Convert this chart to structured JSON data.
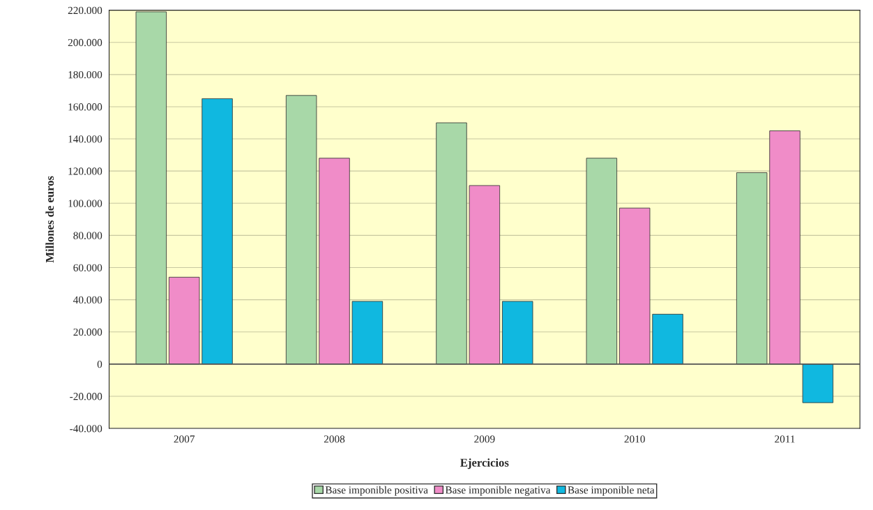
{
  "chart_data": {
    "type": "bar",
    "xlabel": "Ejercicios",
    "ylabel": "Millones de euros",
    "categories": [
      "2007",
      "2008",
      "2009",
      "2010",
      "2011"
    ],
    "series": [
      {
        "name": "Base imponible positiva",
        "color": "#a8d8a8",
        "values": [
          219000,
          167000,
          150000,
          128000,
          119000
        ]
      },
      {
        "name": "Base imponible negativa",
        "color": "#f08cc8",
        "values": [
          54000,
          128000,
          111000,
          97000,
          145000
        ]
      },
      {
        "name": "Base imponible neta",
        "color": "#10b8e0",
        "values": [
          165000,
          39000,
          39000,
          31000,
          -24000
        ]
      }
    ],
    "ylim": [
      -40000,
      220000
    ],
    "yticks": [
      {
        "value": -40000,
        "label": "-40.000"
      },
      {
        "value": -20000,
        "label": "-20.000"
      },
      0,
      {
        "value": 20000,
        "label": "20.000"
      },
      {
        "value": 40000,
        "label": "40.000"
      },
      {
        "value": 60000,
        "label": "60.000"
      },
      {
        "value": 80000,
        "label": "80.000"
      },
      {
        "value": 100000,
        "label": "100.000"
      },
      {
        "value": 120000,
        "label": "120.000"
      },
      {
        "value": 140000,
        "label": "140.000"
      },
      {
        "value": 160000,
        "label": "160.000"
      },
      {
        "value": 180000,
        "label": "180.000"
      },
      {
        "value": 200000,
        "label": "200.000"
      },
      {
        "value": 220000,
        "label": "220.000"
      }
    ],
    "grid": "y",
    "legend": "bottom"
  }
}
